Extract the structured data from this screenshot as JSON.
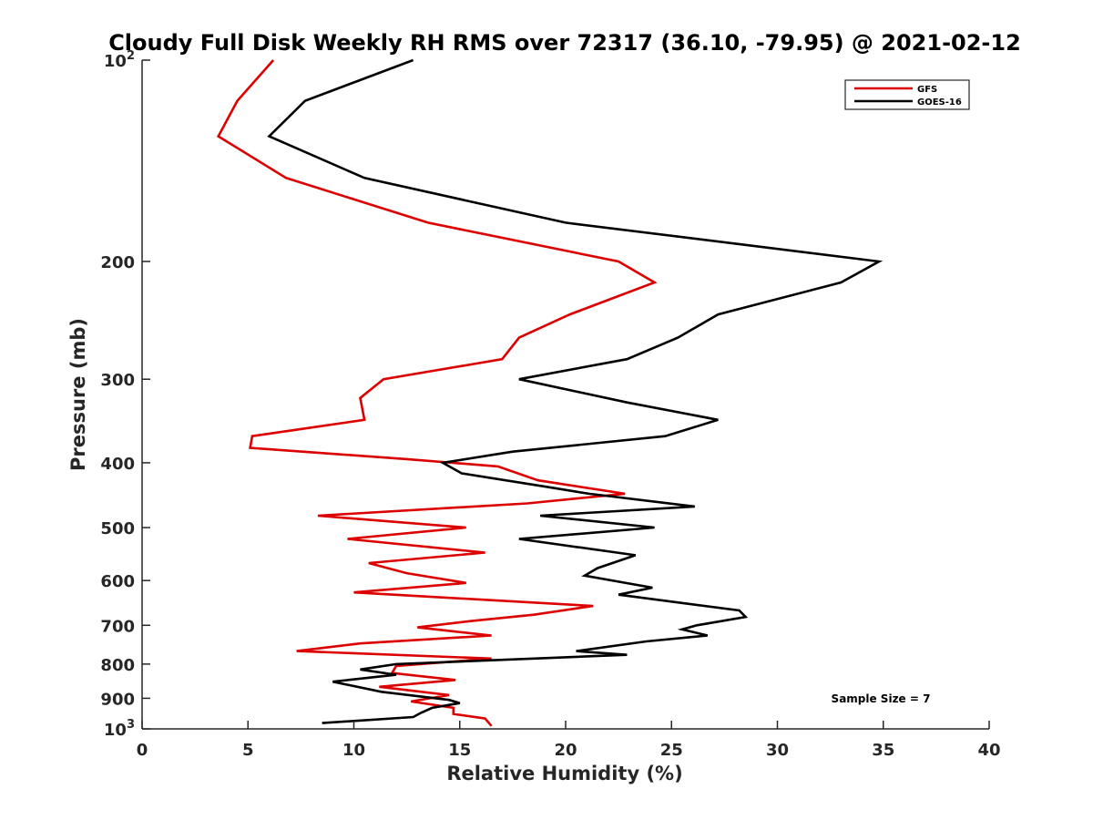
{
  "chart_data": {
    "type": "line",
    "title": "Cloudy Full Disk Weekly RH RMS over 72317 (36.10, -79.95) @ 2021-02-12",
    "xlabel": "Relative Humidity (%)",
    "ylabel": "Pressure (mb)",
    "xlim": [
      0,
      40
    ],
    "ylim": [
      100,
      1000
    ],
    "yscale": "log",
    "y_reversed": true,
    "grid": false,
    "legend_position": "top-right",
    "x_ticks": [
      0,
      5,
      10,
      15,
      20,
      25,
      30,
      35,
      40
    ],
    "x_tick_labels": [
      "0",
      "5",
      "10",
      "15",
      "20",
      "25",
      "30",
      "35",
      "40"
    ],
    "y_ticks": [
      100,
      200,
      300,
      400,
      500,
      600,
      700,
      800,
      900,
      1000
    ],
    "y_tick_labels": [
      {
        "base": "10",
        "exp": "2"
      },
      {
        "base": "200",
        "exp": ""
      },
      {
        "base": "300",
        "exp": ""
      },
      {
        "base": "400",
        "exp": ""
      },
      {
        "base": "500",
        "exp": ""
      },
      {
        "base": "600",
        "exp": ""
      },
      {
        "base": "700",
        "exp": ""
      },
      {
        "base": "800",
        "exp": ""
      },
      {
        "base": "900",
        "exp": ""
      },
      {
        "base": "10",
        "exp": "3"
      }
    ],
    "annotation": "Sample Size = 7",
    "series": [
      {
        "name": "GFS",
        "color": "#dd0000",
        "points": [
          [
            6.2,
            100
          ],
          [
            4.5,
            115
          ],
          [
            3.6,
            130
          ],
          [
            6.8,
            150
          ],
          [
            13.5,
            175
          ],
          [
            22.5,
            200
          ],
          [
            24.2,
            215
          ],
          [
            20.2,
            240
          ],
          [
            17.8,
            260
          ],
          [
            17.0,
            280
          ],
          [
            11.4,
            300
          ],
          [
            10.3,
            320
          ],
          [
            10.5,
            345
          ],
          [
            5.2,
            365
          ],
          [
            5.1,
            380
          ],
          [
            12.5,
            395
          ],
          [
            16.8,
            405
          ],
          [
            18.7,
            425
          ],
          [
            22.8,
            445
          ],
          [
            18.2,
            460
          ],
          [
            8.3,
            480
          ],
          [
            15.3,
            500
          ],
          [
            9.7,
            520
          ],
          [
            16.2,
            545
          ],
          [
            10.7,
            565
          ],
          [
            12.5,
            585
          ],
          [
            15.3,
            605
          ],
          [
            10.0,
            625
          ],
          [
            21.3,
            655
          ],
          [
            18.5,
            675
          ],
          [
            15.5,
            690
          ],
          [
            13.0,
            705
          ],
          [
            16.5,
            725
          ],
          [
            10.3,
            745
          ],
          [
            7.3,
            765
          ],
          [
            16.5,
            785
          ],
          [
            12.0,
            805
          ],
          [
            11.8,
            825
          ],
          [
            14.8,
            845
          ],
          [
            11.2,
            865
          ],
          [
            14.5,
            890
          ],
          [
            12.7,
            910
          ],
          [
            14.7,
            930
          ],
          [
            14.7,
            950
          ],
          [
            16.2,
            965
          ],
          [
            16.5,
            990
          ]
        ]
      },
      {
        "name": "GOES-16",
        "color": "#000000",
        "points": [
          [
            12.8,
            100
          ],
          [
            7.7,
            115
          ],
          [
            6.0,
            130
          ],
          [
            10.5,
            150
          ],
          [
            20.0,
            175
          ],
          [
            34.8,
            200
          ],
          [
            33.0,
            215
          ],
          [
            27.2,
            240
          ],
          [
            25.3,
            260
          ],
          [
            22.9,
            280
          ],
          [
            17.8,
            300
          ],
          [
            22.9,
            325
          ],
          [
            27.2,
            345
          ],
          [
            24.7,
            365
          ],
          [
            17.5,
            385
          ],
          [
            14.2,
            400
          ],
          [
            15.1,
            415
          ],
          [
            19.2,
            435
          ],
          [
            21.1,
            445
          ],
          [
            26.1,
            465
          ],
          [
            18.8,
            480
          ],
          [
            24.2,
            500
          ],
          [
            17.8,
            520
          ],
          [
            23.3,
            550
          ],
          [
            21.5,
            575
          ],
          [
            20.9,
            590
          ],
          [
            24.1,
            615
          ],
          [
            22.5,
            630
          ],
          [
            28.2,
            665
          ],
          [
            28.5,
            680
          ],
          [
            26.2,
            700
          ],
          [
            25.5,
            710
          ],
          [
            26.7,
            725
          ],
          [
            23.8,
            740
          ],
          [
            20.5,
            765
          ],
          [
            22.9,
            775
          ],
          [
            12.0,
            800
          ],
          [
            10.3,
            815
          ],
          [
            12.0,
            830
          ],
          [
            9.0,
            850
          ],
          [
            11.3,
            880
          ],
          [
            14.5,
            905
          ],
          [
            15.0,
            915
          ],
          [
            13.7,
            930
          ],
          [
            13.2,
            945
          ],
          [
            12.8,
            960
          ],
          [
            8.5,
            980
          ]
        ]
      }
    ]
  }
}
